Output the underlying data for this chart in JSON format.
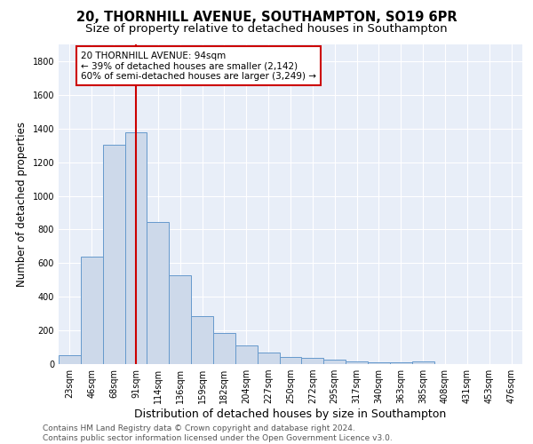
{
  "title": "20, THORNHILL AVENUE, SOUTHAMPTON, SO19 6PR",
  "subtitle": "Size of property relative to detached houses in Southampton",
  "xlabel": "Distribution of detached houses by size in Southampton",
  "ylabel": "Number of detached properties",
  "categories": [
    "23sqm",
    "46sqm",
    "68sqm",
    "91sqm",
    "114sqm",
    "136sqm",
    "159sqm",
    "182sqm",
    "204sqm",
    "227sqm",
    "250sqm",
    "272sqm",
    "295sqm",
    "317sqm",
    "340sqm",
    "363sqm",
    "385sqm",
    "408sqm",
    "431sqm",
    "453sqm",
    "476sqm"
  ],
  "values": [
    55,
    640,
    1305,
    1375,
    845,
    530,
    285,
    185,
    110,
    70,
    40,
    35,
    25,
    15,
    10,
    10,
    15,
    0,
    0,
    0,
    0
  ],
  "bar_color": "#cdd9ea",
  "bar_edge_color": "#6699cc",
  "background_color": "#e8eef8",
  "grid_color": "#d0d8e8",
  "annotation_box_text": "20 THORNHILL AVENUE: 94sqm\n← 39% of detached houses are smaller (2,142)\n60% of semi-detached houses are larger (3,249) →",
  "annotation_box_color": "#ffffff",
  "annotation_box_edge_color": "#cc0000",
  "red_line_x": 3.0,
  "red_line_color": "#cc0000",
  "ylim": [
    0,
    1900
  ],
  "yticks": [
    0,
    200,
    400,
    600,
    800,
    1000,
    1200,
    1400,
    1600,
    1800
  ],
  "footer_text": "Contains HM Land Registry data © Crown copyright and database right 2024.\nContains public sector information licensed under the Open Government Licence v3.0.",
  "title_fontsize": 10.5,
  "subtitle_fontsize": 9.5,
  "xlabel_fontsize": 9,
  "ylabel_fontsize": 8.5,
  "tick_fontsize": 7,
  "annotation_fontsize": 7.5,
  "footer_fontsize": 6.5
}
